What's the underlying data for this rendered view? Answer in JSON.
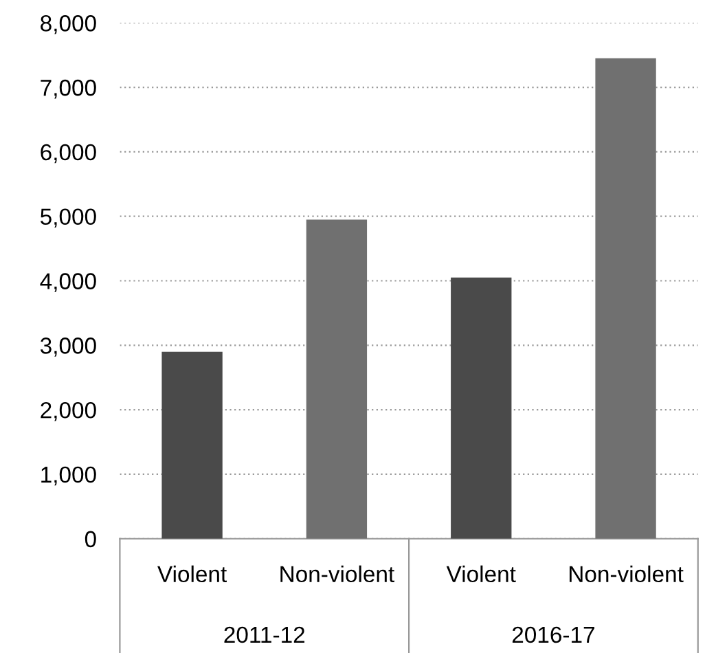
{
  "chart_data": {
    "type": "bar",
    "categories": [
      "Violent",
      "Non-violent",
      "Violent",
      "Non-violent"
    ],
    "values": [
      2900,
      4950,
      4050,
      7450
    ],
    "colors": [
      "#4a4a4a",
      "#707070",
      "#4a4a4a",
      "#707070"
    ],
    "ylim": [
      0,
      8000
    ],
    "yticks": [
      {
        "value": 0,
        "label": "0"
      },
      {
        "value": 1000,
        "label": "1,000"
      },
      {
        "value": 2000,
        "label": "2,000"
      },
      {
        "value": 3000,
        "label": "3,000"
      },
      {
        "value": 4000,
        "label": "4,000"
      },
      {
        "value": 5000,
        "label": "5,000"
      },
      {
        "value": 6000,
        "label": "6,000"
      },
      {
        "value": 7000,
        "label": "7,000"
      },
      {
        "value": 8000,
        "label": "8,000"
      }
    ],
    "grid": "y",
    "annotations": [
      "2011-12",
      "2016-17"
    ]
  }
}
